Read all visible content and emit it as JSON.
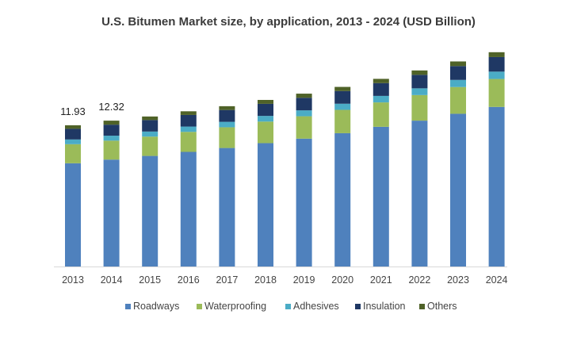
{
  "chart_data": {
    "type": "bar",
    "stacked": true,
    "title": "U.S. Bitumen Market size, by application, 2013 - 2024 (USD Billion)",
    "xlabel": "",
    "ylabel": "",
    "ylim": [
      0,
      20.5
    ],
    "grid": false,
    "legend_position": "bottom",
    "categories": [
      "2013",
      "2014",
      "2015",
      "2016",
      "2017",
      "2018",
      "2019",
      "2020",
      "2021",
      "2022",
      "2023",
      "2024"
    ],
    "series": [
      {
        "name": "Roadways",
        "color": "#4f81bd",
        "values": [
          8.72,
          9.03,
          9.34,
          9.68,
          10.01,
          10.42,
          10.8,
          11.26,
          11.8,
          12.32,
          12.9,
          13.48
        ]
      },
      {
        "name": "Waterproofing",
        "color": "#9bbb59",
        "values": [
          1.61,
          1.6,
          1.63,
          1.69,
          1.75,
          1.82,
          1.89,
          1.97,
          2.06,
          2.16,
          2.26,
          2.36
        ]
      },
      {
        "name": "Adhesives",
        "color": "#4bacc6",
        "values": [
          0.4,
          0.42,
          0.43,
          0.45,
          0.46,
          0.48,
          0.5,
          0.52,
          0.55,
          0.57,
          0.6,
          0.62
        ]
      },
      {
        "name": "Insulation",
        "color": "#1f3864",
        "values": [
          0.9,
          0.93,
          0.97,
          0.98,
          1.0,
          1.02,
          1.06,
          1.07,
          1.08,
          1.14,
          1.17,
          1.23
        ]
      },
      {
        "name": "Others",
        "color": "#4f6228",
        "values": [
          0.3,
          0.34,
          0.3,
          0.31,
          0.32,
          0.33,
          0.35,
          0.35,
          0.36,
          0.37,
          0.39,
          0.41
        ]
      }
    ],
    "data_labels": [
      {
        "category": "2013",
        "text": "11.93"
      },
      {
        "category": "2014",
        "text": "12.32"
      }
    ]
  }
}
